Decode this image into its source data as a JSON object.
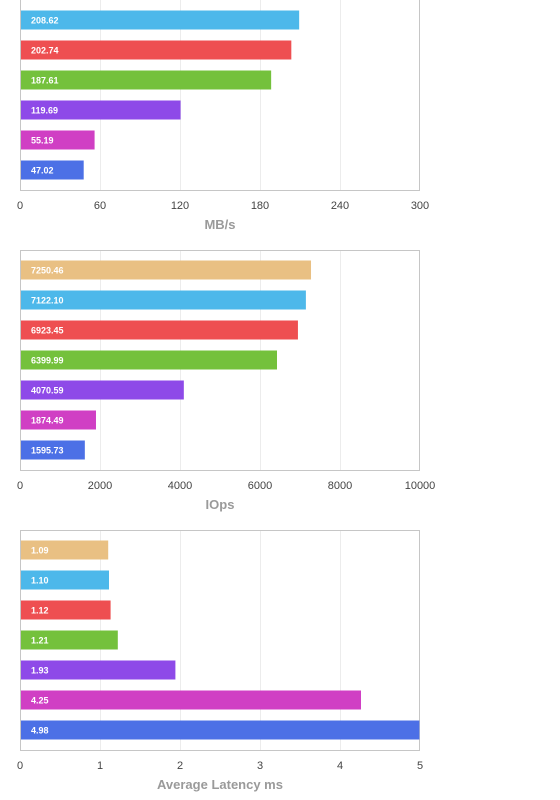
{
  "chart_data": [
    {
      "type": "bar",
      "orientation": "horizontal",
      "xlabel": "MB/s",
      "xlim": [
        0,
        300
      ],
      "ticks": [
        0,
        60,
        120,
        180,
        240,
        300
      ],
      "grid": true,
      "bars": [
        {
          "value": 208.62,
          "label": "208.62",
          "color": "#4db8ea"
        },
        {
          "value": 202.74,
          "label": "202.74",
          "color": "#ee4f51"
        },
        {
          "value": 187.61,
          "label": "187.61",
          "color": "#74c13c"
        },
        {
          "value": 119.69,
          "label": "119.69",
          "color": "#8e4ae8"
        },
        {
          "value": 55.19,
          "label": "55.19",
          "color": "#d03fc4"
        },
        {
          "value": 47.02,
          "label": "47.02",
          "color": "#4c70e6"
        }
      ]
    },
    {
      "type": "bar",
      "orientation": "horizontal",
      "xlabel": "IOps",
      "xlim": [
        0,
        10000
      ],
      "ticks": [
        0,
        2000,
        4000,
        6000,
        8000,
        10000
      ],
      "grid": true,
      "bars": [
        {
          "value": 7250.46,
          "label": "7250.46",
          "color": "#e9c083"
        },
        {
          "value": 7122.1,
          "label": "7122.10",
          "color": "#4db8ea"
        },
        {
          "value": 6923.45,
          "label": "6923.45",
          "color": "#ee4f51"
        },
        {
          "value": 6399.99,
          "label": "6399.99",
          "color": "#74c13c"
        },
        {
          "value": 4070.59,
          "label": "4070.59",
          "color": "#8e4ae8"
        },
        {
          "value": 1874.49,
          "label": "1874.49",
          "color": "#d03fc4"
        },
        {
          "value": 1595.73,
          "label": "1595.73",
          "color": "#4c70e6"
        }
      ]
    },
    {
      "type": "bar",
      "orientation": "horizontal",
      "xlabel": "Average Latency ms",
      "xlim": [
        0,
        5
      ],
      "ticks": [
        0,
        1,
        2,
        3,
        4,
        5
      ],
      "grid": true,
      "bars": [
        {
          "value": 1.09,
          "label": "1.09",
          "color": "#e9c083"
        },
        {
          "value": 1.1,
          "label": "1.10",
          "color": "#4db8ea"
        },
        {
          "value": 1.12,
          "label": "1.12",
          "color": "#ee4f51"
        },
        {
          "value": 1.21,
          "label": "1.21",
          "color": "#74c13c"
        },
        {
          "value": 1.93,
          "label": "1.93",
          "color": "#8e4ae8"
        },
        {
          "value": 4.25,
          "label": "4.25",
          "color": "#d03fc4"
        },
        {
          "value": 4.98,
          "label": "4.98",
          "color": "#4c70e6"
        }
      ]
    }
  ]
}
